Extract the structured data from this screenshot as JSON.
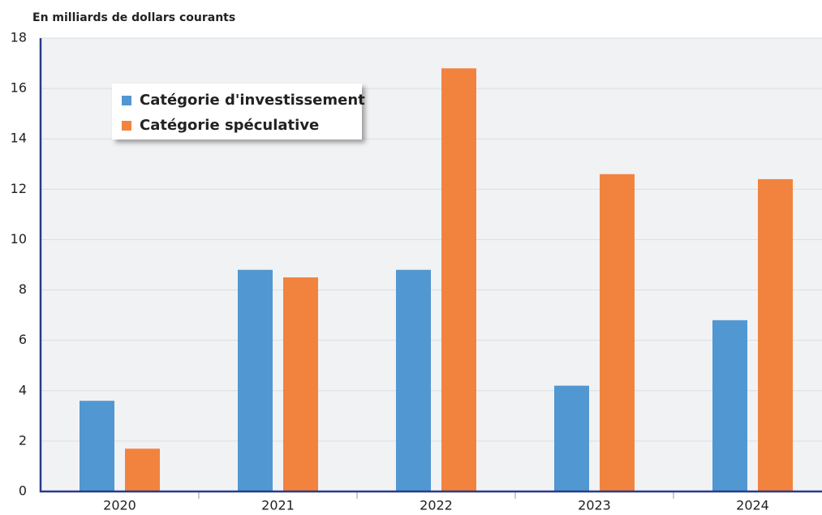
{
  "chart_data": {
    "type": "bar",
    "title": "En milliards de dollars courants",
    "categories": [
      "2020",
      "2021",
      "2022",
      "2023",
      "2024"
    ],
    "series": [
      {
        "name": "Catégorie d'investissement",
        "color": "#5197d2",
        "values": [
          3.6,
          8.8,
          8.8,
          4.2,
          6.8
        ]
      },
      {
        "name": "Catégorie spéculative",
        "color": "#f2833e",
        "values": [
          1.7,
          8.5,
          16.8,
          12.6,
          12.4
        ]
      }
    ],
    "ylim": [
      0,
      18
    ],
    "yticks": [
      0,
      2,
      4,
      6,
      8,
      10,
      12,
      14,
      16,
      18
    ],
    "grid": true,
    "legend": "upper left"
  }
}
